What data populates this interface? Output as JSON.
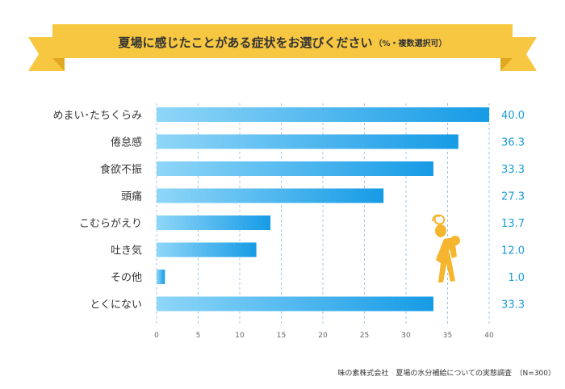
{
  "header": {
    "title": "夏場に感じたことがある症状をお選びください",
    "subtitle": "（%・複数選択可）"
  },
  "source": "味の素株式会社　夏場の水分補給についての実態調査　（N=300）",
  "colors": {
    "banner": "#f7c742",
    "banner_dark": "#e0a81e",
    "bar_start": "#8fd6f8",
    "bar_end": "#169be6",
    "value_text": "#1a9bd7",
    "grid": "#9ec7e8",
    "figure": "#f5b52e"
  },
  "icons": {
    "figure": "fatigued-person-icon"
  },
  "chart_data": {
    "type": "bar",
    "orientation": "horizontal",
    "categories": [
      "めまい･たちくらみ",
      "倦怠感",
      "食欲不振",
      "頭痛",
      "こむらがえり",
      "吐き気",
      "その他",
      "とくにない"
    ],
    "values": [
      40.0,
      36.3,
      33.3,
      27.3,
      13.7,
      12.0,
      1.0,
      33.3
    ],
    "value_labels": [
      "40.0",
      "36.3",
      "33.3",
      "27.3",
      "13.7",
      "12.0",
      "1.0",
      "33.3"
    ],
    "xlim": [
      0,
      40
    ],
    "x_ticks": [
      0,
      5,
      10,
      15,
      20,
      25,
      30,
      35,
      40
    ],
    "grid": true,
    "grid_style": "dashed-vertical"
  }
}
